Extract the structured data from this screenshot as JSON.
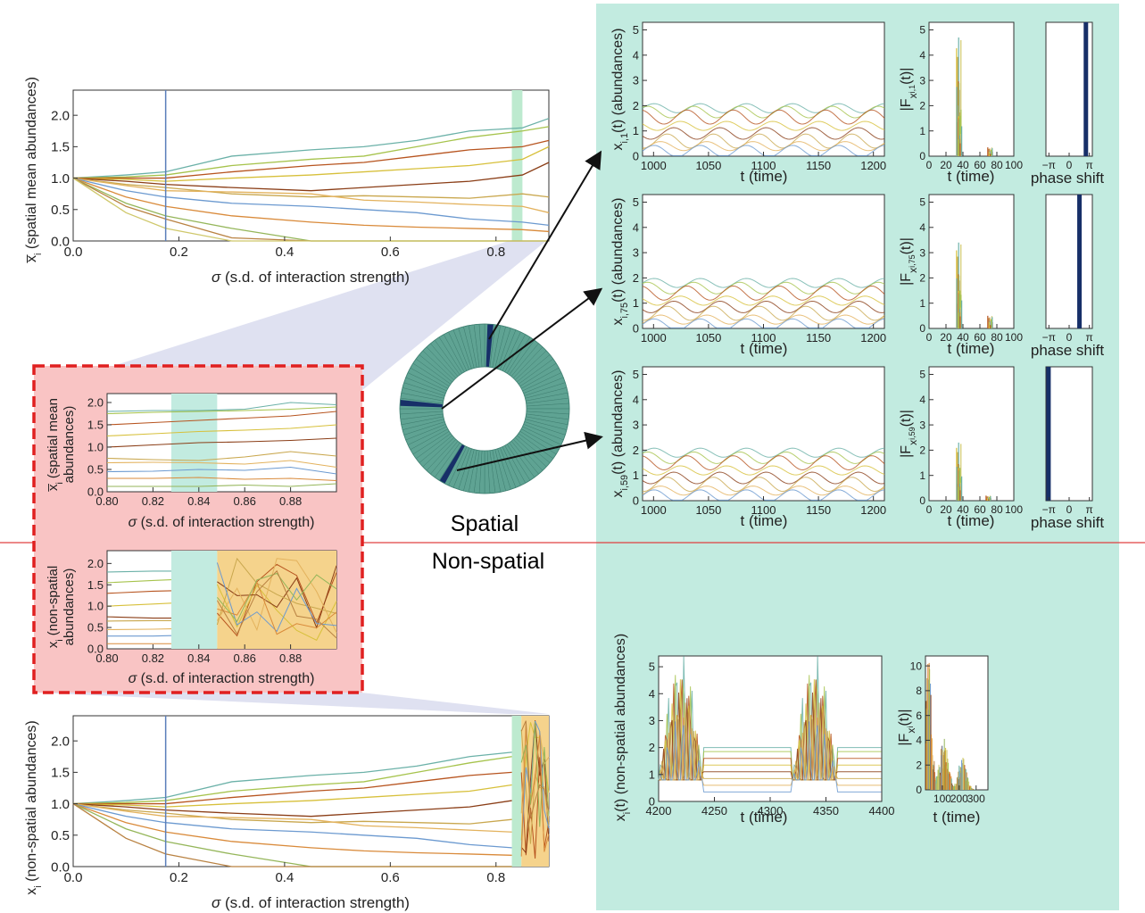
{
  "colors": {
    "teal_panel": "#c2ebe0",
    "mint_band": "#bdeacf",
    "red_panel_fill": "#f9c4c4",
    "red_dash": "#e02020",
    "orange_band": "#f5d38c",
    "ring_fill": "#5fa393",
    "ring_highlight": "#172f68",
    "axis_blue_line": "#5b7fba",
    "divider_red": "#e04040",
    "line_palette": [
      "#6bb1a8",
      "#a6c34c",
      "#b7541f",
      "#d7c03b",
      "#8a3d16",
      "#c9a74e",
      "#e3b25d",
      "#6c9ad0",
      "#d98a3a",
      "#95b65a",
      "#b98242",
      "#cfc86b"
    ]
  },
  "labels": {
    "spatial": "Spatial",
    "non_spatial": "Non-spatial",
    "sigma_xlabel": "(s.d. of interaction strength)",
    "sigma_symbol": "σ",
    "t_time": "t (time)",
    "phase_shift": "phase shift",
    "ylabel_spatial_mean": "(spatial mean abundances)",
    "ylabel_spatial_mean_l1": "(spatial mean",
    "ylabel_spatial_mean_l2": "abundances)",
    "ylabel_nonspatial": "(non-spatial abundances)",
    "ylabel_nonspatial_l1": "(non-spatial",
    "ylabel_nonspatial_l2": "abundances)",
    "xbar_i": "x̅",
    "x_i": "x",
    "sub_i": "i",
    "ylabel_x_i1": "(abundances)",
    "x_i1_base": "x",
    "x_i1_sub": "i,1",
    "x_i1_tail": "(t)",
    "x_i75_sub": "i,75",
    "x_i59_sub": "i,59",
    "F_i1_sub": "i,1",
    "F_i75_sub": "i,75",
    "F_i59_sub": "i,59",
    "F_prefix": "|F",
    "F_x": "x",
    "F_suffix": "(t)|",
    "x_it_nonspatial": "x",
    "x_it_sub": "i",
    "x_it_tail": "(t)",
    "x_it_rest": "(non-spatial abundances)"
  },
  "chart_data": [
    {
      "id": "spatial-mean-vs-sigma",
      "type": "line",
      "xlabel": "σ  (s.d. of interaction strength)",
      "ylabel": "x̅i (spatial mean abundances)",
      "xlim": [
        0,
        0.9
      ],
      "ylim": [
        0,
        2.4
      ],
      "xticks": [
        "0.0",
        "0.2",
        "0.4",
        "0.6",
        "0.8"
      ],
      "yticks": [
        "0.0",
        "0.5",
        "1.0",
        "1.5",
        "2.0"
      ],
      "marker_sigma": 0.175,
      "highlight_band": [
        0.83,
        0.85
      ],
      "x": [
        0,
        0.1,
        0.175,
        0.3,
        0.45,
        0.55,
        0.65,
        0.75,
        0.85,
        0.9
      ],
      "series": [
        {
          "values": [
            1.0,
            1.05,
            1.1,
            1.35,
            1.45,
            1.5,
            1.6,
            1.75,
            1.8,
            1.95
          ]
        },
        {
          "values": [
            1.0,
            1.02,
            1.05,
            1.2,
            1.3,
            1.35,
            1.5,
            1.65,
            1.75,
            1.82
          ]
        },
        {
          "values": [
            1.0,
            1.0,
            1.0,
            1.1,
            1.2,
            1.25,
            1.35,
            1.45,
            1.5,
            1.6
          ]
        },
        {
          "values": [
            1.0,
            0.98,
            0.95,
            1.0,
            1.05,
            1.1,
            1.15,
            1.2,
            1.3,
            1.5
          ]
        },
        {
          "values": [
            1.0,
            0.95,
            0.9,
            0.85,
            0.8,
            0.85,
            0.9,
            0.95,
            1.05,
            1.25
          ]
        },
        {
          "values": [
            1.0,
            0.9,
            0.85,
            0.75,
            0.7,
            0.72,
            0.7,
            0.68,
            0.75,
            0.7
          ]
        },
        {
          "values": [
            1.0,
            0.88,
            0.8,
            0.78,
            0.75,
            0.65,
            0.62,
            0.58,
            0.55,
            0.45
          ]
        },
        {
          "values": [
            1.0,
            0.8,
            0.7,
            0.6,
            0.55,
            0.5,
            0.45,
            0.35,
            0.3,
            0.25
          ]
        },
        {
          "values": [
            1.0,
            0.7,
            0.55,
            0.4,
            0.3,
            0.25,
            0.22,
            0.2,
            0.18,
            0.15
          ]
        },
        {
          "values": [
            1.0,
            0.6,
            0.4,
            0.2,
            0.0,
            0.0,
            0.0,
            0.0,
            0.0,
            0.0
          ]
        },
        {
          "values": [
            1.0,
            0.55,
            0.35,
            0.05,
            0.0,
            0.0,
            0.0,
            0.0,
            0.0,
            0.0
          ]
        },
        {
          "values": [
            1.0,
            0.45,
            0.2,
            0.0,
            0.0,
            0.0,
            0.0,
            0.0,
            0.0,
            0.0
          ]
        }
      ]
    },
    {
      "id": "spatial-mean-zoom",
      "type": "line",
      "xlabel": "σ  (s.d. of interaction strength)",
      "ylabel": "x̅i (spatial mean abundances)",
      "xlim": [
        0.8,
        0.9
      ],
      "ylim": [
        0,
        2.2
      ],
      "xticks": [
        "0.80",
        "0.82",
        "0.84",
        "0.86",
        "0.88"
      ],
      "yticks": [
        "0.0",
        "0.5",
        "1.0",
        "1.5",
        "2.0"
      ],
      "highlight_band": [
        0.828,
        0.848
      ],
      "x": [
        0.8,
        0.82,
        0.84,
        0.86,
        0.88,
        0.9
      ],
      "series": [
        {
          "values": [
            1.8,
            1.82,
            1.82,
            1.85,
            2.0,
            1.95
          ]
        },
        {
          "values": [
            1.75,
            1.78,
            1.8,
            1.82,
            1.85,
            1.9
          ]
        },
        {
          "values": [
            1.5,
            1.55,
            1.6,
            1.65,
            1.7,
            1.8
          ]
        },
        {
          "values": [
            1.25,
            1.3,
            1.35,
            1.38,
            1.42,
            1.5
          ]
        },
        {
          "values": [
            1.0,
            1.05,
            1.1,
            1.12,
            1.15,
            1.2
          ]
        },
        {
          "values": [
            0.75,
            0.72,
            0.7,
            0.78,
            0.9,
            0.8
          ]
        },
        {
          "values": [
            0.65,
            0.66,
            0.65,
            0.62,
            0.7,
            0.55
          ]
        },
        {
          "values": [
            0.45,
            0.46,
            0.5,
            0.48,
            0.55,
            0.4
          ]
        },
        {
          "values": [
            0.3,
            0.3,
            0.32,
            0.28,
            0.3,
            0.25
          ]
        },
        {
          "values": [
            0.12,
            0.12,
            0.12,
            0.15,
            0.12,
            0.18
          ]
        }
      ]
    },
    {
      "id": "nonspatial-zoom",
      "type": "line",
      "xlabel": "σ  (s.d. of interaction strength)",
      "ylabel": "xi (non-spatial abundances)",
      "xlim": [
        0.8,
        0.9
      ],
      "ylim": [
        0,
        2.3
      ],
      "xticks": [
        "0.80",
        "0.82",
        "0.84",
        "0.86",
        "0.88"
      ],
      "yticks": [
        "0.0",
        "0.5",
        "1.0",
        "1.5",
        "2.0"
      ],
      "highlight_band": [
        0.828,
        0.848
      ],
      "chaotic_band": [
        0.848,
        0.9
      ],
      "x": [
        0.8,
        0.82,
        0.828
      ],
      "series": [
        {
          "values": [
            1.8,
            1.82,
            1.82
          ]
        },
        {
          "values": [
            1.55,
            1.6,
            1.62
          ]
        },
        {
          "values": [
            1.3,
            1.35,
            1.36
          ]
        },
        {
          "values": [
            1.0,
            1.05,
            1.07
          ]
        },
        {
          "values": [
            0.75,
            0.72,
            0.72
          ]
        },
        {
          "values": [
            0.65,
            0.66,
            0.66
          ]
        },
        {
          "values": [
            0.45,
            0.46,
            0.47
          ]
        },
        {
          "values": [
            0.3,
            0.3,
            0.31
          ]
        },
        {
          "values": [
            0.12,
            0.12,
            0.12
          ]
        }
      ]
    },
    {
      "id": "nonspatial-vs-sigma",
      "type": "line",
      "xlabel": "σ  (s.d. of interaction strength)",
      "ylabel": "xi (non-spatial abundances)",
      "xlim": [
        0,
        0.9
      ],
      "ylim": [
        0,
        2.4
      ],
      "xticks": [
        "0.0",
        "0.2",
        "0.4",
        "0.6",
        "0.8"
      ],
      "yticks": [
        "0.0",
        "0.5",
        "1.0",
        "1.5",
        "2.0"
      ],
      "marker_sigma": 0.175,
      "highlight_band": [
        0.83,
        0.848
      ],
      "chaotic_band": [
        0.848,
        0.9
      ],
      "x": [
        0,
        0.1,
        0.175,
        0.3,
        0.45,
        0.55,
        0.65,
        0.75,
        0.83
      ],
      "series": [
        {
          "values": [
            1.0,
            1.05,
            1.1,
            1.35,
            1.45,
            1.5,
            1.6,
            1.75,
            1.82
          ]
        },
        {
          "values": [
            1.0,
            1.02,
            1.05,
            1.2,
            1.3,
            1.35,
            1.5,
            1.65,
            1.75
          ]
        },
        {
          "values": [
            1.0,
            1.0,
            1.0,
            1.1,
            1.2,
            1.25,
            1.35,
            1.45,
            1.5
          ]
        },
        {
          "values": [
            1.0,
            0.98,
            0.95,
            1.0,
            1.05,
            1.1,
            1.15,
            1.2,
            1.3
          ]
        },
        {
          "values": [
            1.0,
            0.95,
            0.9,
            0.85,
            0.8,
            0.85,
            0.9,
            0.95,
            1.05
          ]
        },
        {
          "values": [
            1.0,
            0.9,
            0.85,
            0.75,
            0.7,
            0.72,
            0.7,
            0.68,
            0.75
          ]
        },
        {
          "values": [
            1.0,
            0.88,
            0.8,
            0.78,
            0.75,
            0.65,
            0.62,
            0.58,
            0.55
          ]
        },
        {
          "values": [
            1.0,
            0.8,
            0.7,
            0.6,
            0.55,
            0.5,
            0.45,
            0.35,
            0.3
          ]
        },
        {
          "values": [
            1.0,
            0.7,
            0.55,
            0.4,
            0.3,
            0.25,
            0.22,
            0.2,
            0.18
          ]
        },
        {
          "values": [
            1.0,
            0.6,
            0.4,
            0.2,
            0.0,
            0.0,
            0.0,
            0.0,
            0.0
          ]
        },
        {
          "values": [
            1.0,
            0.45,
            0.2,
            0.0,
            0.0,
            0.0,
            0.0,
            0.0,
            0.0
          ]
        }
      ]
    },
    {
      "id": "timeseries-patch-1",
      "type": "line",
      "xlabel": "t (time)",
      "ylabel": "xi,1(t) (abundances)",
      "xlim": [
        990,
        1210
      ],
      "ylim": [
        0,
        5.3
      ],
      "xticks": [
        "1000",
        "1050",
        "1100",
        "1150",
        "1200"
      ],
      "yticks": [
        "0",
        "1",
        "2",
        "3",
        "4",
        "5"
      ],
      "oscillation_levels": [
        1.9,
        1.75,
        1.55,
        1.2,
        0.9,
        0.6,
        0.4,
        0.2
      ],
      "period": 42
    },
    {
      "id": "timeseries-patch-75",
      "type": "line",
      "xlabel": "t (time)",
      "ylabel": "xi,75(t) (abundances)",
      "xlim": [
        990,
        1210
      ],
      "ylim": [
        0,
        5.3
      ],
      "xticks": [
        "1000",
        "1050",
        "1100",
        "1150",
        "1200"
      ],
      "yticks": [
        "0",
        "1",
        "2",
        "3",
        "4",
        "5"
      ],
      "oscillation_levels": [
        1.8,
        1.6,
        1.4,
        1.1,
        0.85,
        0.6,
        0.35,
        0.15
      ],
      "period": 42
    },
    {
      "id": "timeseries-patch-59",
      "type": "line",
      "xlabel": "t (time)",
      "ylabel": "xi,59(t) (abundances)",
      "xlim": [
        990,
        1210
      ],
      "ylim": [
        0,
        5.3
      ],
      "xticks": [
        "1000",
        "1050",
        "1100",
        "1150",
        "1200"
      ],
      "yticks": [
        "0",
        "1",
        "2",
        "3",
        "4",
        "5"
      ],
      "oscillation_levels": [
        1.9,
        1.7,
        1.5,
        1.2,
        0.9,
        0.65,
        0.4,
        0.2
      ],
      "period": 42
    },
    {
      "id": "spectrum-patch-1",
      "type": "area",
      "xlabel": "t (time)",
      "ylabel": "|Fxi,1(t)|",
      "xlim": [
        0,
        100
      ],
      "ylim": [
        0,
        5.3
      ],
      "xticks": [
        "0",
        "20",
        "40",
        "60",
        "80",
        "100"
      ],
      "yticks": [
        "0",
        "1",
        "2",
        "3",
        "4",
        "5"
      ],
      "peaks": [
        {
          "x": 35,
          "height": 4.7
        },
        {
          "x": 37,
          "height": 1.6
        },
        {
          "x": 72,
          "height": 0.35
        }
      ]
    },
    {
      "id": "spectrum-patch-75",
      "type": "area",
      "xlabel": "t (time)",
      "ylabel": "|Fxi,75(t)|",
      "xlim": [
        0,
        100
      ],
      "ylim": [
        0,
        5.3
      ],
      "xticks": [
        "0",
        "20",
        "40",
        "60",
        "80",
        "100"
      ],
      "yticks": [
        "0",
        "1",
        "2",
        "3",
        "4",
        "5"
      ],
      "peaks": [
        {
          "x": 35,
          "height": 3.4
        },
        {
          "x": 37,
          "height": 1.5
        },
        {
          "x": 72,
          "height": 0.5
        }
      ]
    },
    {
      "id": "spectrum-patch-59",
      "type": "area",
      "xlabel": "t (time)",
      "ylabel": "|Fxi,59(t)|",
      "xlim": [
        0,
        100
      ],
      "ylim": [
        0,
        5.3
      ],
      "xticks": [
        "0",
        "20",
        "40",
        "60",
        "80",
        "100"
      ],
      "yticks": [
        "0",
        "1",
        "2",
        "3",
        "4",
        "5"
      ],
      "peaks": [
        {
          "x": 35,
          "height": 2.3
        },
        {
          "x": 37,
          "height": 1.3
        },
        {
          "x": 70,
          "height": 0.2
        }
      ]
    },
    {
      "id": "phase-patch-1",
      "type": "bar",
      "xlabel": "phase shift",
      "xticks": [
        "−π",
        "0",
        "π"
      ],
      "xlim": [
        -3.6,
        3.6
      ],
      "phase": 2.6
    },
    {
      "id": "phase-patch-75",
      "type": "bar",
      "xlabel": "phase shift",
      "xticks": [
        "−π",
        "0",
        "π"
      ],
      "xlim": [
        -3.6,
        3.6
      ],
      "phase": 1.6
    },
    {
      "id": "phase-patch-59",
      "type": "bar",
      "xlabel": "phase shift",
      "xticks": [
        "−π",
        "0",
        "π"
      ],
      "xlim": [
        -3.6,
        3.6
      ],
      "phase": -3.2
    },
    {
      "id": "nonspatial-timeseries",
      "type": "line",
      "xlabel": "t (time)",
      "ylabel": "xi(t) (non-spatial abundances)",
      "xlim": [
        4200,
        4400
      ],
      "ylim": [
        0,
        5.4
      ],
      "xticks": [
        "4200",
        "4250",
        "4300",
        "4350",
        "4400"
      ],
      "yticks": [
        "0",
        "1",
        "2",
        "3",
        "4",
        "5"
      ],
      "burst_windows": [
        [
          4200,
          4240
        ],
        [
          4320,
          4360
        ]
      ],
      "quiet_levels": [
        2.0,
        1.85,
        1.6,
        1.35,
        1.1,
        0.85,
        0.6,
        0.35
      ]
    },
    {
      "id": "nonspatial-spectrum",
      "type": "area",
      "xlabel": "t (time)",
      "ylabel": "|Fxi(t)|",
      "xlim": [
        0,
        370
      ],
      "ylim": [
        0,
        10.8
      ],
      "xticks": [
        "100",
        "200",
        "300"
      ],
      "yticks": [
        "0",
        "2",
        "4",
        "6",
        "8",
        "10"
      ],
      "peaks": [
        {
          "x": 20,
          "height": 10.0
        },
        {
          "x": 110,
          "height": 4.0
        },
        {
          "x": 220,
          "height": 2.5
        }
      ]
    },
    {
      "id": "patch-ring",
      "type": "pie",
      "segments": 100,
      "highlighted_patches": [
        1,
        59,
        75
      ]
    }
  ]
}
